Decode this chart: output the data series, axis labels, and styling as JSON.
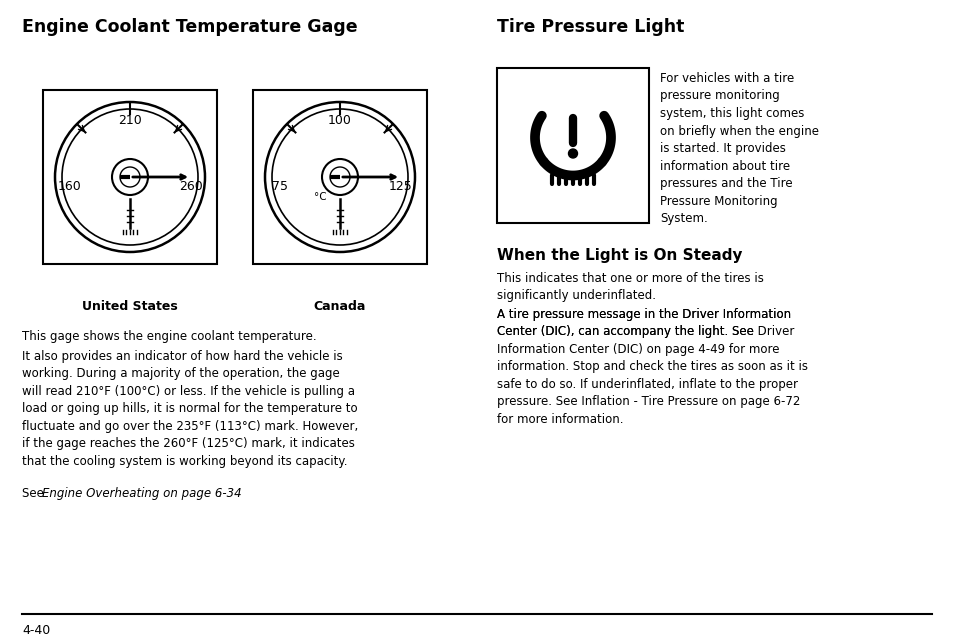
{
  "title_left": "Engine Coolant Temperature Gage",
  "title_right": "Tire Pressure Light",
  "subtitle_steady": "When the Light is On Steady",
  "label_us": "United States",
  "label_ca": "Canada",
  "gauge_us_labels": [
    "210",
    "160",
    "260"
  ],
  "gauge_ca_labels": [
    "100",
    "75",
    "125"
  ],
  "gauge_ca_unit": "°C",
  "text_main1": "This gage shows the engine coolant temperature.",
  "text_main2": "It also provides an indicator of how hard the vehicle is\nworking. During a majority of the operation, the gage\nwill read 210°F (100°C) or less. If the vehicle is pulling a\nload or going up hills, it is normal for the temperature to\nfluctuate and go over the 235°F (113°C) mark. However,\nif the gage reaches the 260°F (125°C) mark, it indicates\nthat the cooling system is working beyond its capacity.",
  "text_see_pre": "See ",
  "text_see_italic": "Engine Overheating on page 6-34",
  "text_see_post": ".",
  "text_tpl": "For vehicles with a tire\npressure monitoring\nsystem, this light comes\non briefly when the engine\nis started. It provides\ninformation about tire\npressures and the Tire\nPressure Monitoring\nSystem.",
  "text_steady1": "This indicates that one or more of the tires is\nsignificantly underinflated.",
  "text_steady2_pre": "A tire pressure message in the Driver Information\nCenter (DIC), can accompany the light. See ",
  "text_steady2_italic": "Driver\nInformation Center (DIC) on page 4-49",
  "text_steady2_mid": " for more\ninformation. Stop and check the tires as soon as it is\nsafe to do so. If underinflated, inflate to the proper\npressure. See ",
  "text_steady2_italic2": "Inflation - Tire Pressure on page 6-72",
  "text_steady2_end": "\nfor more information.",
  "page_label": "4-40",
  "bg_color": "#ffffff",
  "text_color": "#000000"
}
